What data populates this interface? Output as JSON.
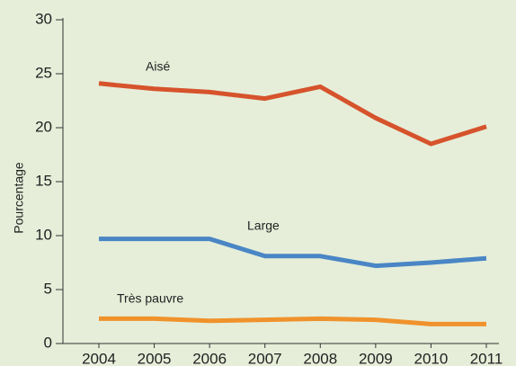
{
  "chart_data": {
    "type": "line",
    "y_label": "Pourcentage",
    "x": [
      2004,
      2005,
      2006,
      2007,
      2008,
      2009,
      2010,
      2011
    ],
    "series": [
      {
        "name": "Aisé",
        "color": "#d6532c",
        "values": [
          24.1,
          23.6,
          23.3,
          22.7,
          23.8,
          20.9,
          18.5,
          20.1
        ]
      },
      {
        "name": "Large",
        "color": "#4a86c5",
        "values": [
          9.7,
          9.7,
          9.7,
          8.1,
          8.1,
          7.2,
          7.5,
          7.9
        ]
      },
      {
        "name": "Très pauvre",
        "color": "#f0922c",
        "values": [
          2.3,
          2.3,
          2.1,
          2.2,
          2.3,
          2.2,
          1.8,
          1.8
        ]
      }
    ],
    "xlim": [
      2004,
      2011
    ],
    "xticks": [
      2004,
      2005,
      2006,
      2007,
      2008,
      2009,
      2010,
      2011
    ],
    "ylim": [
      0,
      30
    ],
    "yticks": [
      0,
      5,
      10,
      15,
      20,
      25,
      30
    ],
    "grid": false
  }
}
